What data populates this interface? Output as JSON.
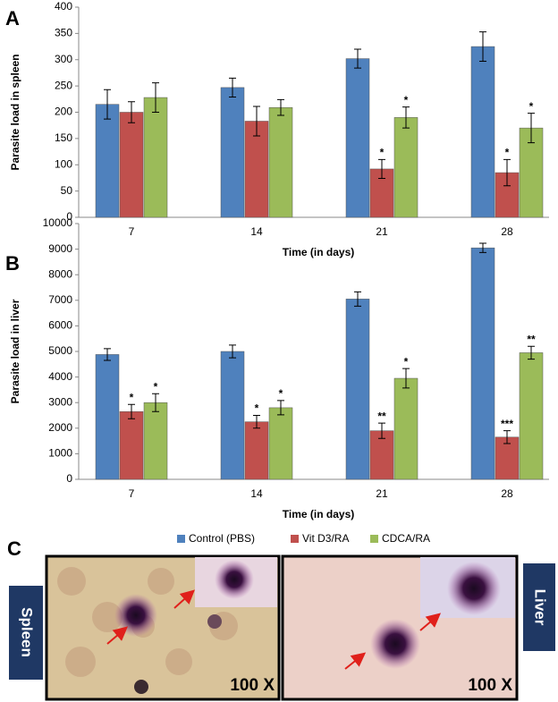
{
  "chart_data": [
    {
      "type": "bar",
      "panel_label": "A",
      "x_label": "Time (in days)",
      "y_label": "Parasite load in spleen",
      "categories": [
        "7",
        "14",
        "21",
        "28"
      ],
      "ylim": [
        0,
        400
      ],
      "yticks": [
        0,
        50,
        100,
        150,
        200,
        250,
        300,
        350,
        400
      ],
      "series": [
        {
          "color": "#4f81bd",
          "values": [
            215,
            247,
            302,
            325
          ],
          "errors": [
            28,
            18,
            18,
            28
          ],
          "stars": [
            null,
            null,
            null,
            null
          ]
        },
        {
          "color": "#c0504d",
          "values": [
            200,
            183,
            92,
            85
          ],
          "errors": [
            20,
            28,
            18,
            25
          ],
          "stars": [
            null,
            null,
            "*",
            "*"
          ]
        },
        {
          "color": "#9bbb59",
          "values": [
            228,
            209,
            190,
            170
          ],
          "errors": [
            28,
            15,
            20,
            28
          ],
          "stars": [
            null,
            null,
            "*",
            "*"
          ]
        }
      ]
    },
    {
      "type": "bar",
      "panel_label": "B",
      "x_label": "Time (in days)",
      "y_label": "Parasite load in liver",
      "categories": [
        "7",
        "14",
        "21",
        "28"
      ],
      "ylim": [
        0,
        10000
      ],
      "yticks": [
        0,
        1000,
        2000,
        3000,
        4000,
        5000,
        6000,
        7000,
        8000,
        9000,
        10000
      ],
      "series": [
        {
          "name": "Control (PBS)",
          "color": "#4f81bd",
          "values": [
            4880,
            5000,
            7050,
            9050
          ],
          "errors": [
            230,
            250,
            280,
            180
          ],
          "stars": [
            null,
            null,
            null,
            null
          ]
        },
        {
          "name": "Vit D3/RA",
          "color": "#c0504d",
          "values": [
            2650,
            2250,
            1900,
            1650
          ],
          "errors": [
            280,
            250,
            300,
            250
          ],
          "stars": [
            "*",
            "*",
            "**",
            "***"
          ]
        },
        {
          "name": "CDCA/RA",
          "color": "#9bbb59",
          "values": [
            3000,
            2800,
            3950,
            4950
          ],
          "errors": [
            350,
            280,
            380,
            250
          ],
          "stars": [
            "*",
            "*",
            "*",
            "**"
          ]
        }
      ]
    }
  ],
  "panel_c": {
    "label": "C",
    "images": [
      {
        "tissue": "Spleen",
        "magnification": "100 X"
      },
      {
        "tissue": "Liver",
        "magnification": "100 X"
      }
    ]
  }
}
